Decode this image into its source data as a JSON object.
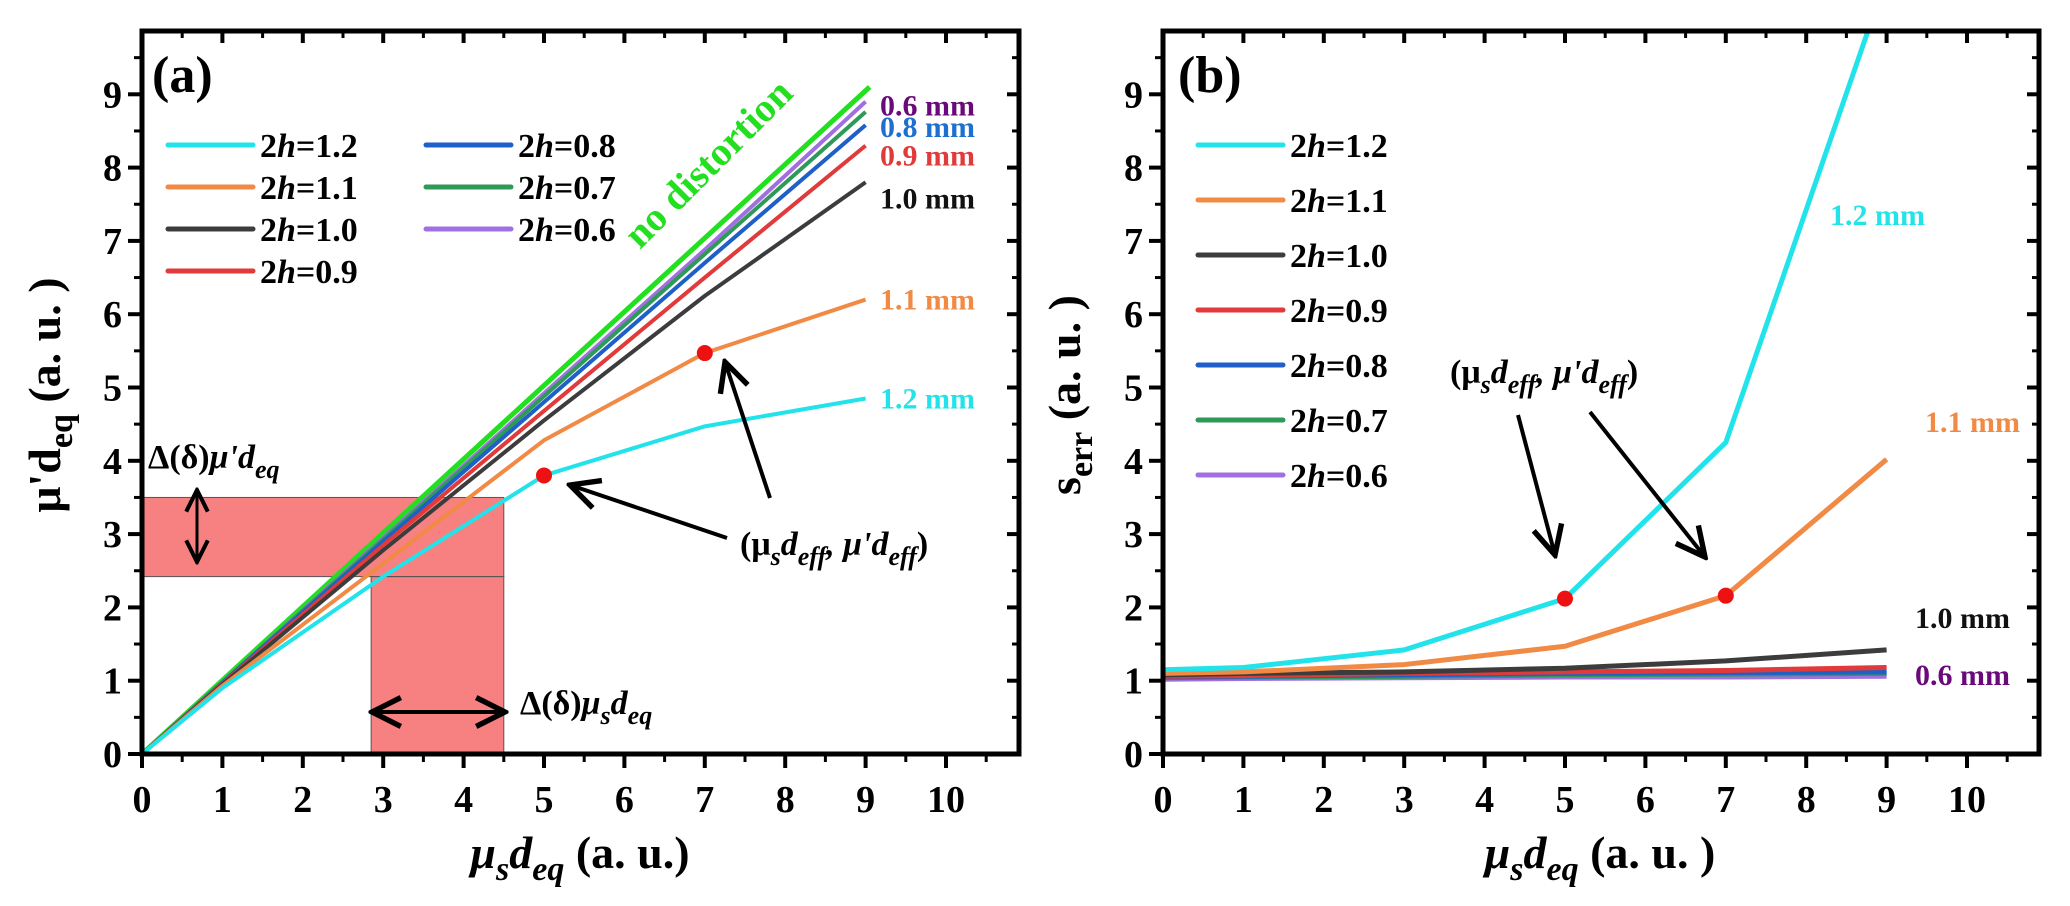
{
  "chart_data": [
    {
      "id": "a",
      "type": "line",
      "panel_label": "(a)",
      "title": "",
      "xlabel": {
        "main": "μ",
        "sub1": "s",
        "main2": "d",
        "sub2": "eq",
        "suffix": " (a. u.)"
      },
      "ylabel": {
        "main": "μ'd",
        "sub": "eq",
        "suffix": " (a. u. )"
      },
      "xlim": [
        0,
        10.9
      ],
      "ylim": [
        0,
        9.85
      ],
      "xticks": [
        0,
        1,
        2,
        3,
        4,
        5,
        6,
        7,
        8,
        9,
        10
      ],
      "yticks": [
        0,
        1,
        2,
        3,
        4,
        5,
        6,
        7,
        8,
        9
      ],
      "grid": false,
      "legend": {
        "placement": "top-left",
        "columns": 2
      },
      "x": [
        0,
        1,
        3,
        5,
        7,
        9
      ],
      "reference_line": {
        "name": "no distortion",
        "color": "#22e01f",
        "x": [
          0,
          9.05
        ],
        "y": [
          0,
          9.1
        ]
      },
      "series": [
        {
          "name": "2h=1.2",
          "legend_prefix": "2",
          "legend_var": "h",
          "legend_value": "=1.2",
          "color": "#22e3ea",
          "values": [
            0,
            0.9,
            2.42,
            3.8,
            4.47,
            4.85
          ],
          "end_label": "1.2 mm",
          "end_label_color": "#22e3ea"
        },
        {
          "name": "2h=1.1",
          "legend_prefix": "2",
          "legend_var": "h",
          "legend_value": "=1.1",
          "color": "#f08a45",
          "values": [
            0,
            0.93,
            2.6,
            4.28,
            5.47,
            6.2
          ],
          "end_label": "1.1 mm",
          "end_label_color": "#f08a45"
        },
        {
          "name": "2h=1.0",
          "legend_prefix": "2",
          "legend_var": "h",
          "legend_value": "=1.0",
          "color": "#3c3c3c",
          "values": [
            0,
            0.95,
            2.78,
            4.55,
            6.25,
            7.8
          ],
          "end_label": "1.0 mm",
          "end_label_color": "#111111"
        },
        {
          "name": "2h=0.9",
          "legend_prefix": "2",
          "legend_var": "h",
          "legend_value": "=0.9",
          "color": "#e03a3a",
          "values": [
            0,
            0.96,
            2.85,
            4.68,
            6.5,
            8.3
          ],
          "end_label": "0.9 mm",
          "end_label_color": "#e03a3a"
        },
        {
          "name": "2h=0.8",
          "legend_prefix": "2",
          "legend_var": "h",
          "legend_value": "=0.8",
          "color": "#1f5fc8",
          "values": [
            0,
            0.97,
            2.9,
            4.8,
            6.7,
            8.58
          ],
          "end_label": "0.8 mm",
          "end_label_color": "#1f6fd0"
        },
        {
          "name": "2h=0.7",
          "legend_prefix": "2",
          "legend_var": "h",
          "legend_value": "=0.7",
          "color": "#2e9a58",
          "values": [
            0,
            0.98,
            2.93,
            4.88,
            6.82,
            8.76
          ],
          "end_label": "",
          "end_label_color": "#2e9a58"
        },
        {
          "name": "2h=0.6",
          "legend_prefix": "2",
          "legend_var": "h",
          "legend_value": "=0.6",
          "color": "#a070e0",
          "values": [
            0,
            0.98,
            2.95,
            4.92,
            6.88,
            8.9
          ],
          "end_label": "0.6 mm",
          "end_label_color": "#6a0a7a"
        }
      ],
      "markers": [
        {
          "x": 5,
          "y": 3.8,
          "color": "#ee1111"
        },
        {
          "x": 7,
          "y": 5.47,
          "color": "#ee1111"
        }
      ],
      "shaded_regions": [
        {
          "x": [
            0,
            4.5
          ],
          "y": [
            2.42,
            3.5
          ],
          "color": "#f66a6a"
        },
        {
          "x": [
            2.85,
            4.5
          ],
          "y": [
            0,
            2.42
          ],
          "color": "#f66a6a"
        }
      ],
      "annotations": [
        {
          "id": "delta-mu-prime",
          "text_prefix": "Δ(δ)",
          "text_main": "μ'd",
          "text_sub": "eq"
        },
        {
          "id": "delta-mu-s",
          "text_prefix": "Δ(δ)",
          "text_main": "μ",
          "text_sub1": "s",
          "text_main2": "d",
          "text_sub2": "eq"
        },
        {
          "id": "eff-point",
          "text": "(μ",
          "sub_s": "s",
          "d": "d",
          "sub_eff": "eff",
          "mid": ", μ'd",
          "end": ")"
        }
      ],
      "reference_label": "no distortion"
    },
    {
      "id": "b",
      "type": "line",
      "panel_label": "(b)",
      "title": "",
      "xlabel": {
        "main": "μ",
        "sub1": "s",
        "main2": "d",
        "sub2": "eq",
        "suffix": " (a. u. )"
      },
      "ylabel": {
        "main": "s",
        "sub": "err",
        "suffix": " (a. u. )"
      },
      "xlim": [
        0,
        10.9
      ],
      "ylim": [
        0,
        9.85
      ],
      "xticks": [
        0,
        1,
        2,
        3,
        4,
        5,
        6,
        7,
        8,
        9,
        10
      ],
      "yticks": [
        0,
        1,
        2,
        3,
        4,
        5,
        6,
        7,
        8,
        9
      ],
      "grid": false,
      "legend": {
        "placement": "top-left",
        "columns": 1
      },
      "x": [
        0,
        1,
        3,
        5,
        7,
        9
      ],
      "series": [
        {
          "name": "2h=1.2",
          "legend_prefix": "2",
          "legend_var": "h",
          "legend_value": "=1.2",
          "color": "#22e3ea",
          "values": [
            1.15,
            1.18,
            1.42,
            2.12,
            4.25,
            10.6
          ],
          "end_label": "1.2 mm",
          "end_label_color": "#22e3ea"
        },
        {
          "name": "2h=1.1",
          "legend_prefix": "2",
          "legend_var": "h",
          "legend_value": "=1.1",
          "color": "#f08a45",
          "values": [
            1.1,
            1.12,
            1.22,
            1.47,
            2.16,
            4.02
          ],
          "end_label": "1.1 mm",
          "end_label_color": "#f08a45"
        },
        {
          "name": "2h=1.0",
          "legend_prefix": "2",
          "legend_var": "h",
          "legend_value": "=1.0",
          "color": "#3c3c3c",
          "values": [
            1.08,
            1.1,
            1.12,
            1.17,
            1.27,
            1.42
          ],
          "end_label": "1.0 mm",
          "end_label_color": "#111111"
        },
        {
          "name": "2h=0.9",
          "legend_prefix": "2",
          "legend_var": "h",
          "legend_value": "=0.9",
          "color": "#e03a3a",
          "values": [
            1.06,
            1.07,
            1.1,
            1.12,
            1.14,
            1.18
          ],
          "end_label": "",
          "end_label_color": "#e03a3a"
        },
        {
          "name": "2h=0.8",
          "legend_prefix": "2",
          "legend_var": "h",
          "legend_value": "=0.8",
          "color": "#1f5fc8",
          "values": [
            1.05,
            1.06,
            1.08,
            1.1,
            1.11,
            1.12
          ],
          "end_label": "",
          "end_label_color": "#1f5fc8"
        },
        {
          "name": "2h=0.7",
          "legend_prefix": "2",
          "legend_var": "h",
          "legend_value": "=0.7",
          "color": "#2e9a58",
          "values": [
            1.04,
            1.05,
            1.06,
            1.08,
            1.09,
            1.1
          ],
          "end_label": "",
          "end_label_color": "#2e9a58"
        },
        {
          "name": "2h=0.6",
          "legend_prefix": "2",
          "legend_var": "h",
          "legend_value": "=0.6",
          "color": "#a070e0",
          "values": [
            1.02,
            1.03,
            1.04,
            1.05,
            1.05,
            1.06
          ],
          "end_label": "0.6 mm",
          "end_label_color": "#6a0a7a"
        }
      ],
      "markers": [
        {
          "x": 5,
          "y": 2.12,
          "color": "#ee1111"
        },
        {
          "x": 7,
          "y": 2.16,
          "color": "#ee1111"
        }
      ],
      "annotations": [
        {
          "id": "eff-point",
          "text": "(μ",
          "sub_s": "s",
          "d": "d",
          "sub_eff": "eff",
          "mid": ", μ'd",
          "end": ")"
        }
      ]
    }
  ]
}
